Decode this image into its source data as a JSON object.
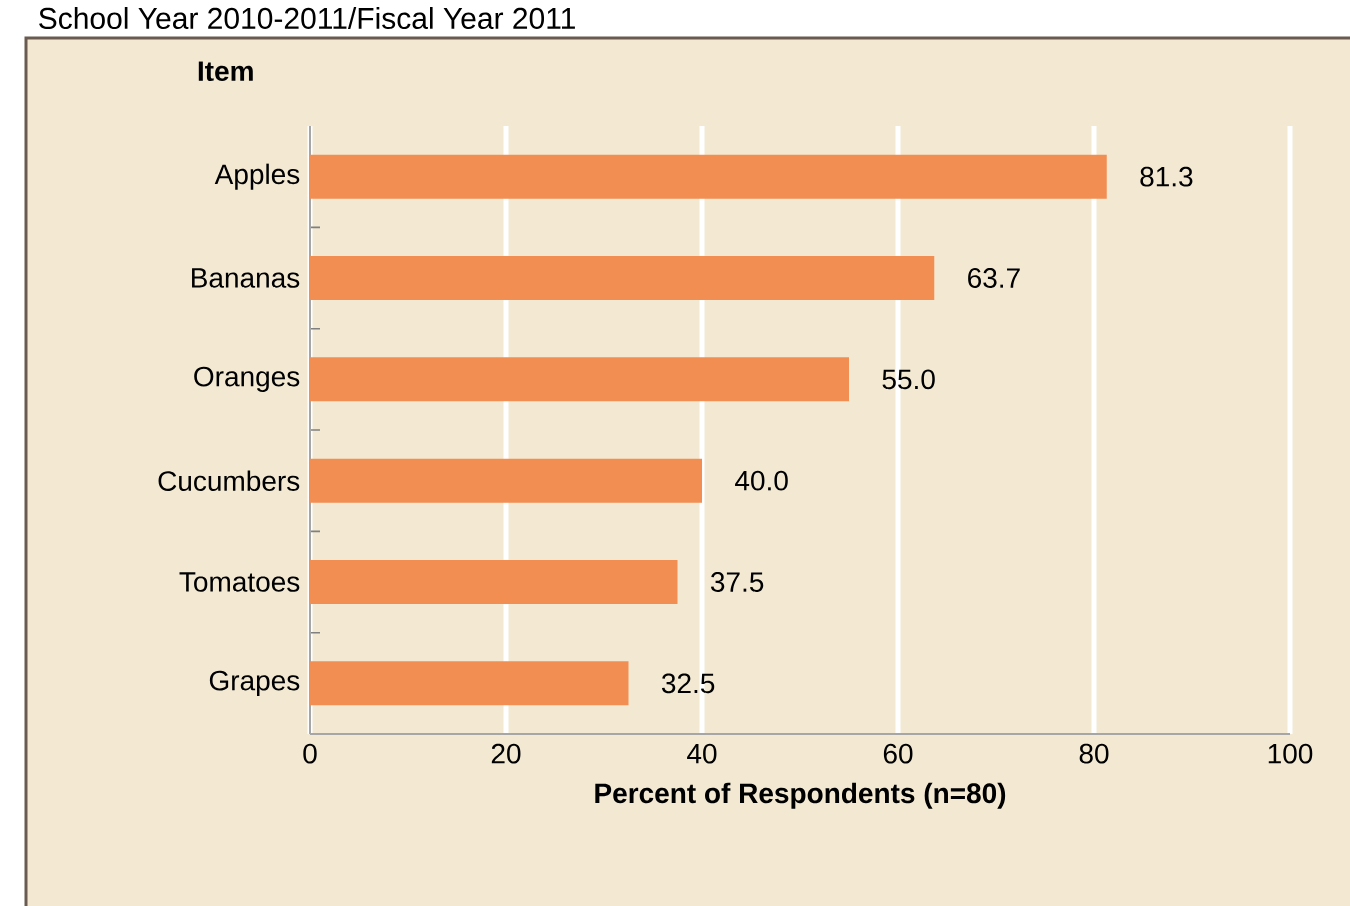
{
  "chart_data": {
    "type": "bar",
    "orientation": "horizontal",
    "title": "School Year 2010-2011/Fiscal Year 2011",
    "ylabel": "Item",
    "xlabel": "Percent of Respondents (n=80)",
    "categories": [
      "Apples",
      "Bananas",
      "Oranges",
      "Cucumbers",
      "Tomatoes",
      "Grapes"
    ],
    "values": [
      81.3,
      63.7,
      55.0,
      40.0,
      37.5,
      32.5
    ],
    "value_labels": [
      "81.3",
      "63.7",
      "55.0",
      "40.0",
      "37.5",
      "32.5"
    ],
    "color": "#f28e52",
    "xlim": [
      0,
      100
    ],
    "xticks": [
      0,
      20,
      40,
      60,
      80,
      100
    ],
    "grid": "x"
  }
}
